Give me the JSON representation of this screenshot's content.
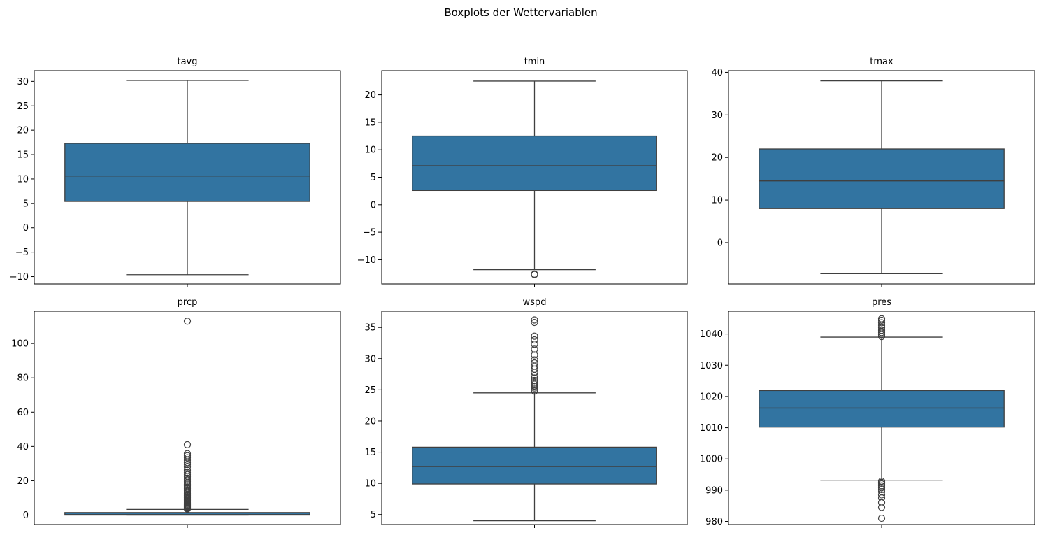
{
  "figure": {
    "title": "Boxplots der Wettervariablen"
  },
  "colors": {
    "box_fill": "#3274a1",
    "box_edge": "#3f3f3f",
    "background": "#ffffff"
  },
  "chart_data": [
    {
      "type": "boxplot",
      "title": "tavg",
      "ylim": [
        -11.5,
        32.2
      ],
      "yticks": [
        -10,
        -5,
        0,
        5,
        10,
        15,
        20,
        25,
        30
      ],
      "ytick_labels": [
        "−10",
        "−5",
        "0",
        "5",
        "10",
        "15",
        "20",
        "25",
        "30"
      ],
      "whisker_low": -9.6,
      "q1": 5.4,
      "median": 10.6,
      "q3": 17.3,
      "whisker_high": 30.2,
      "outliers": []
    },
    {
      "type": "boxplot",
      "title": "tmin",
      "ylim": [
        -14.4,
        24.4
      ],
      "yticks": [
        -10,
        -5,
        0,
        5,
        10,
        15,
        20
      ],
      "ytick_labels": [
        "−10",
        "−5",
        "0",
        "5",
        "10",
        "15",
        "20"
      ],
      "whisker_low": -11.8,
      "q1": 2.6,
      "median": 7.1,
      "q3": 12.5,
      "whisker_high": 22.5,
      "outliers": [
        -12.6,
        -12.7
      ]
    },
    {
      "type": "boxplot",
      "title": "tmax",
      "ylim": [
        -9.7,
        40.4
      ],
      "yticks": [
        0,
        10,
        20,
        30,
        40
      ],
      "ytick_labels": [
        "0",
        "10",
        "20",
        "30",
        "40"
      ],
      "whisker_low": -7.3,
      "q1": 8.0,
      "median": 14.5,
      "q3": 22.0,
      "whisker_high": 38.0,
      "outliers": []
    },
    {
      "type": "boxplot",
      "title": "prcp",
      "ylim": [
        -5.5,
        118.8
      ],
      "yticks": [
        0,
        20,
        40,
        60,
        80,
        100
      ],
      "ytick_labels": [
        "0",
        "20",
        "40",
        "60",
        "80",
        "100"
      ],
      "whisker_low": 0.0,
      "q1": 0.0,
      "median": 0.3,
      "q3": 1.5,
      "whisker_high": 3.3,
      "outliers": [
        3.6,
        4.0,
        4.4,
        4.8,
        5.2,
        5.6,
        6.0,
        6.5,
        7.0,
        7.5,
        8.0,
        8.5,
        9.0,
        9.6,
        10.2,
        10.8,
        11.4,
        12.0,
        12.7,
        13.4,
        14.1,
        14.8,
        15.6,
        16.4,
        17.2,
        18.0,
        18.8,
        19.7,
        20.6,
        21.5,
        22.5,
        23.6,
        24.8,
        26.2,
        28.0,
        29.5,
        30.6,
        32.0,
        33.4,
        34.6,
        35.8,
        41.0,
        113.0
      ]
    },
    {
      "type": "boxplot",
      "title": "wspd",
      "ylim": [
        3.4,
        37.6
      ],
      "yticks": [
        5,
        10,
        15,
        20,
        25,
        30,
        35
      ],
      "ytick_labels": [
        "5",
        "10",
        "15",
        "20",
        "25",
        "30",
        "35"
      ],
      "whisker_low": 4.0,
      "q1": 9.9,
      "median": 12.7,
      "q3": 15.8,
      "whisker_high": 24.5,
      "outliers": [
        24.8,
        25.0,
        25.3,
        25.6,
        25.9,
        26.2,
        26.5,
        26.9,
        27.3,
        27.8,
        28.3,
        28.8,
        29.3,
        29.8,
        30.6,
        31.5,
        32.3,
        33.0,
        33.6,
        35.8,
        36.2
      ]
    },
    {
      "type": "boxplot",
      "title": "pres",
      "ylim": [
        979.0,
        1047.3
      ],
      "yticks": [
        980,
        990,
        1000,
        1010,
        1020,
        1030,
        1040
      ],
      "ytick_labels": [
        "980",
        "990",
        "1000",
        "1010",
        "1020",
        "1030",
        "1040"
      ],
      "whisker_low": 993.2,
      "q1": 1010.2,
      "median": 1016.3,
      "q3": 1021.9,
      "whisker_high": 1039.0,
      "outliers": [
        981.0,
        984.5,
        986.0,
        987.5,
        988.5,
        989.5,
        990.2,
        990.8,
        991.4,
        992.0,
        992.5,
        992.9,
        1039.2,
        1039.8,
        1040.5,
        1041.2,
        1042.0,
        1042.8,
        1043.6,
        1044.4,
        1044.9
      ]
    }
  ]
}
